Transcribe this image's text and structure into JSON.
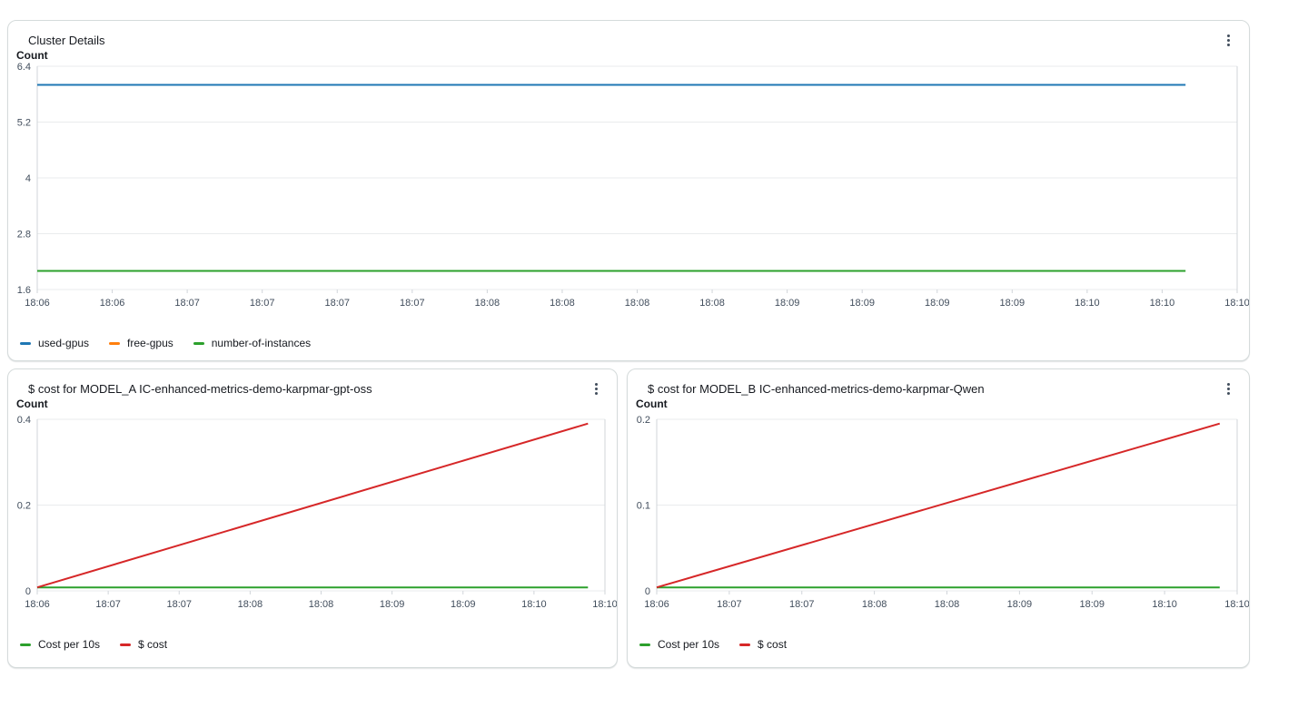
{
  "colors": {
    "grid": "#e9ebed",
    "frame": "#d1d5da",
    "tick_text": "#414d5c",
    "card_border": "#d5dbdb",
    "text": "#16191f",
    "kebab_icon": "#414d5c",
    "series_blue": "#1f77b4",
    "series_orange": "#ff7f0e",
    "series_green": "#2ca02c",
    "series_red": "#d62728"
  },
  "widgets": {
    "cluster": {
      "title": "Cluster Details",
      "unit": "Count",
      "menu_icon": "kebab-menu-icon",
      "chart_data": {
        "type": "line",
        "title": "Cluster Details",
        "ylabel": "Count",
        "y_ticks": [
          "6.4",
          "5.2",
          "4",
          "2.8",
          "1.6"
        ],
        "y_domain": [
          1.6,
          6.4
        ],
        "x_ticks": [
          "18:06",
          "18:06",
          "18:07",
          "18:07",
          "18:07",
          "18:07",
          "18:08",
          "18:08",
          "18:08",
          "18:08",
          "18:09",
          "18:09",
          "18:09",
          "18:09",
          "18:10",
          "18:10",
          "18:10"
        ],
        "grid": "horizontal-only",
        "legend_position": "bottom-left",
        "series": [
          {
            "name": "used-gpus",
            "color": "#1f77b4",
            "constant_value": 6,
            "points": [
              [
                0,
                6
              ],
              [
                0.957,
                6
              ]
            ]
          },
          {
            "name": "free-gpus",
            "color": "#ff7f0e",
            "constant_value": null,
            "points": []
          },
          {
            "name": "number-of-instances",
            "color": "#2ca02c",
            "constant_value": 2,
            "points": [
              [
                0,
                2
              ],
              [
                0.957,
                2
              ]
            ]
          }
        ]
      }
    },
    "model_a": {
      "title": "$ cost for MODEL_A IC-enhanced-metrics-demo-karpmar-gpt-oss",
      "unit": "Count",
      "menu_icon": "kebab-menu-icon",
      "chart_data": {
        "type": "line",
        "title": "$ cost for MODEL_A IC-enhanced-metrics-demo-karpmar-gpt-oss",
        "ylabel": "Count",
        "y_ticks": [
          "0.4",
          "0.2",
          "0"
        ],
        "y_domain": [
          0,
          0.4
        ],
        "x_ticks": [
          "18:06",
          "18:07",
          "18:07",
          "18:08",
          "18:08",
          "18:09",
          "18:09",
          "18:10",
          "18:10"
        ],
        "grid": "horizontal-only",
        "legend_position": "bottom-left",
        "series": [
          {
            "name": "Cost per 10s",
            "color": "#2ca02c",
            "constant_value": 0.008,
            "points": [
              [
                0,
                0.008
              ],
              [
                0.97,
                0.008
              ]
            ]
          },
          {
            "name": "$ cost",
            "color": "#d62728",
            "start_value": 0.008,
            "end_value": 0.39,
            "points": [
              [
                0,
                0.008
              ],
              [
                0.97,
                0.39
              ]
            ]
          }
        ]
      }
    },
    "model_b": {
      "title": "$ cost for MODEL_B IC-enhanced-metrics-demo-karpmar-Qwen",
      "unit": "Count",
      "menu_icon": "kebab-menu-icon",
      "chart_data": {
        "type": "line",
        "title": "$ cost for MODEL_B IC-enhanced-metrics-demo-karpmar-Qwen",
        "ylabel": "Count",
        "y_ticks": [
          "0.2",
          "0.1",
          "0"
        ],
        "y_domain": [
          0,
          0.2
        ],
        "x_ticks": [
          "18:06",
          "18:07",
          "18:07",
          "18:08",
          "18:08",
          "18:09",
          "18:09",
          "18:10",
          "18:10"
        ],
        "grid": "horizontal-only",
        "legend_position": "bottom-left",
        "series": [
          {
            "name": "Cost per 10s",
            "color": "#2ca02c",
            "constant_value": 0.004,
            "points": [
              [
                0,
                0.004
              ],
              [
                0.97,
                0.004
              ]
            ]
          },
          {
            "name": "$ cost",
            "color": "#d62728",
            "start_value": 0.004,
            "end_value": 0.195,
            "points": [
              [
                0,
                0.004
              ],
              [
                0.97,
                0.195
              ]
            ]
          }
        ]
      }
    }
  }
}
